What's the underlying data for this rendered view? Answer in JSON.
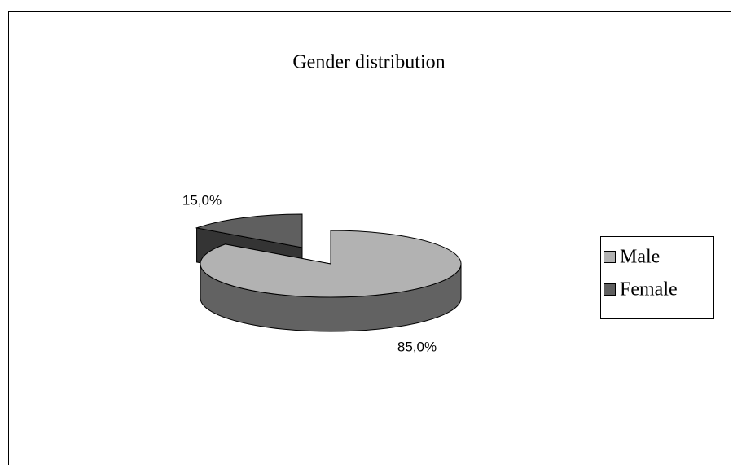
{
  "chart_data": {
    "type": "pie",
    "title": "Gender distribution",
    "categories": [
      "Male",
      "Female"
    ],
    "values": [
      85,
      15
    ],
    "value_labels": [
      "85,0%",
      "15,0%"
    ],
    "colors": [
      "#b2b2b2",
      "#5f5f5f"
    ],
    "legend": "right"
  }
}
